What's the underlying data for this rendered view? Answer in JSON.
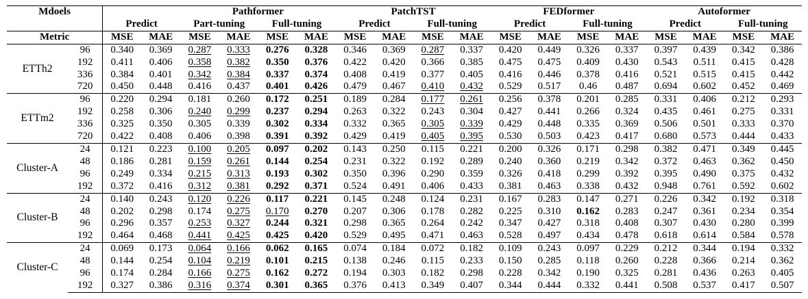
{
  "header": {
    "models_label": "Mdoels",
    "metric_label": "Metric",
    "groups": [
      {
        "name": "",
        "sub": [
          "Predict"
        ]
      },
      {
        "name": "Pathformer",
        "sub": [
          "Part-tuning",
          "Full-tuning"
        ]
      },
      {
        "name": "PatchTST",
        "sub": [
          "Predict",
          "Full-tuning"
        ]
      },
      {
        "name": "FEDformer",
        "sub": [
          "Predict",
          "Full-tuning"
        ]
      },
      {
        "name": "Autoformer",
        "sub": [
          "Predict",
          "Full-tuning"
        ]
      }
    ],
    "metrics": [
      "MSE",
      "MAE",
      "MSE",
      "MAE",
      "MSE",
      "MAE",
      "MSE",
      "MAE",
      "MSE",
      "MAE",
      "MSE",
      "MAE",
      "MSE",
      "MAE",
      "MSE",
      "MAE",
      "MSE",
      "MAE"
    ]
  },
  "blocks": [
    {
      "dataset": "ETTh2",
      "rows": [
        {
          "h": "96",
          "v": [
            "0.340",
            "0.369",
            "0.287",
            "0.333",
            "0.276",
            "0.328",
            "0.346",
            "0.369",
            "0.287",
            "0.337",
            "0.420",
            "0.449",
            "0.326",
            "0.337",
            "0.397",
            "0.439",
            "0.342",
            "0.386"
          ]
        },
        {
          "h": "192",
          "v": [
            "0.411",
            "0.406",
            "0.358",
            "0.382",
            "0.350",
            "0.376",
            "0.422",
            "0.420",
            "0.366",
            "0.385",
            "0.475",
            "0.475",
            "0.409",
            "0.430",
            "0.543",
            "0.511",
            "0.415",
            "0.428"
          ]
        },
        {
          "h": "336",
          "v": [
            "0.384",
            "0.401",
            "0.342",
            "0.384",
            "0.337",
            "0.374",
            "0.408",
            "0.419",
            "0.377",
            "0.405",
            "0.416",
            "0.446",
            "0.378",
            "0.416",
            "0.521",
            "0.515",
            "0.415",
            "0.442"
          ]
        },
        {
          "h": "720",
          "v": [
            "0.450",
            "0.448",
            "0.416",
            "0.437",
            "0.401",
            "0.426",
            "0.479",
            "0.467",
            "0.410",
            "0.432",
            "0.529",
            "0.517",
            "0.46",
            "0.487",
            "0.694",
            "0.602",
            "0.452",
            "0.469"
          ]
        }
      ]
    },
    {
      "dataset": "ETTm2",
      "rows": [
        {
          "h": "96",
          "v": [
            "0.220",
            "0.294",
            "0.181",
            "0.260",
            "0.172",
            "0.251",
            "0.189",
            "0.284",
            "0.177",
            "0.261",
            "0.256",
            "0.378",
            "0.201",
            "0.285",
            "0.331",
            "0.406",
            "0.212",
            "0.293"
          ]
        },
        {
          "h": "192",
          "v": [
            "0.258",
            "0.306",
            "0.240",
            "0.299",
            "0.237",
            "0.294",
            "0.263",
            "0.322",
            "0.243",
            "0.304",
            "0.427",
            "0.441",
            "0.266",
            "0.324",
            "0.435",
            "0.461",
            "0.275",
            "0.331"
          ]
        },
        {
          "h": "336",
          "v": [
            "0.325",
            "0.350",
            "0.305",
            "0.339",
            "0.302",
            "0.334",
            "0.332",
            "0.365",
            "0.305",
            "0.339",
            "0.429",
            "0.448",
            "0.335",
            "0.369",
            "0.506",
            "0.501",
            "0.333",
            "0.370"
          ]
        },
        {
          "h": "720",
          "v": [
            "0.422",
            "0.408",
            "0.406",
            "0.398",
            "0.391",
            "0.392",
            "0.429",
            "0.419",
            "0.405",
            "0.395",
            "0.530",
            "0.503",
            "0.423",
            "0.417",
            "0.680",
            "0.573",
            "0.444",
            "0.433"
          ]
        }
      ]
    },
    {
      "dataset": "Cluster-A",
      "rows": [
        {
          "h": "24",
          "v": [
            "0.121",
            "0.223",
            "0.100",
            "0.205",
            "0.097",
            "0.202",
            "0.143",
            "0.250",
            "0.115",
            "0.221",
            "0.200",
            "0.326",
            "0.171",
            "0.298",
            "0.382",
            "0.471",
            "0.349",
            "0.445"
          ]
        },
        {
          "h": "48",
          "v": [
            "0.186",
            "0.281",
            "0.159",
            "0.261",
            "0.144",
            "0.254",
            "0.231",
            "0.322",
            "0.192",
            "0.289",
            "0.240",
            "0.360",
            "0.219",
            "0.342",
            "0.372",
            "0.463",
            "0.362",
            "0.450"
          ]
        },
        {
          "h": "96",
          "v": [
            "0.249",
            "0.334",
            "0.215",
            "0.313",
            "0.193",
            "0.302",
            "0.350",
            "0.396",
            "0.290",
            "0.359",
            "0.326",
            "0.418",
            "0.299",
            "0.392",
            "0.395",
            "0.490",
            "0.375",
            "0.432"
          ]
        },
        {
          "h": "192",
          "v": [
            "0.372",
            "0.416",
            "0.312",
            "0.381",
            "0.292",
            "0.371",
            "0.524",
            "0.491",
            "0.406",
            "0.433",
            "0.381",
            "0.463",
            "0.338",
            "0.432",
            "0.948",
            "0.761",
            "0.592",
            "0.602"
          ]
        }
      ]
    },
    {
      "dataset": "Cluster-B",
      "rows": [
        {
          "h": "24",
          "v": [
            "0.140",
            "0.243",
            "0.120",
            "0.226",
            "0.117",
            "0.221",
            "0.145",
            "0.248",
            "0.124",
            "0.231",
            "0.167",
            "0.283",
            "0.147",
            "0.271",
            "0.226",
            "0.342",
            "0.192",
            "0.318"
          ]
        },
        {
          "h": "48",
          "v": [
            "0.202",
            "0.298",
            "0.174",
            "0.275",
            "0.170",
            "0.270",
            "0.207",
            "0.306",
            "0.178",
            "0.282",
            "0.225",
            "0.310",
            "0.162",
            "0.283",
            "0.247",
            "0.361",
            "0.234",
            "0.354"
          ]
        },
        {
          "h": "96",
          "v": [
            "0.296",
            "0.357",
            "0.253",
            "0.327",
            "0.244",
            "0.321",
            "0.298",
            "0.365",
            "0.264",
            "0.242",
            "0.347",
            "0.427",
            "0.318",
            "0.408",
            "0.307",
            "0.430",
            "0.280",
            "0.399"
          ]
        },
        {
          "h": "192",
          "v": [
            "0.464",
            "0.468",
            "0.441",
            "0.425",
            "0.425",
            "0.420",
            "0.529",
            "0.495",
            "0.471",
            "0.463",
            "0.528",
            "0.497",
            "0.434",
            "0.478",
            "0.618",
            "0.614",
            "0.584",
            "0.578"
          ]
        }
      ]
    },
    {
      "dataset": "Cluster-C",
      "rows": [
        {
          "h": "24",
          "v": [
            "0.069",
            "0.173",
            "0.064",
            "0.166",
            "0.062",
            "0.165",
            "0.074",
            "0.184",
            "0.072",
            "0.182",
            "0.109",
            "0.243",
            "0.097",
            "0.229",
            "0.212",
            "0.344",
            "0.194",
            "0.332"
          ]
        },
        {
          "h": "48",
          "v": [
            "0.144",
            "0.254",
            "0.104",
            "0.219",
            "0.101",
            "0.215",
            "0.138",
            "0.246",
            "0.115",
            "0.233",
            "0.150",
            "0.285",
            "0.118",
            "0.260",
            "0.228",
            "0.366",
            "0.214",
            "0.362"
          ]
        },
        {
          "h": "96",
          "v": [
            "0.174",
            "0.284",
            "0.166",
            "0.275",
            "0.162",
            "0.272",
            "0.194",
            "0.303",
            "0.182",
            "0.298",
            "0.228",
            "0.342",
            "0.190",
            "0.325",
            "0.281",
            "0.436",
            "0.263",
            "0.405"
          ]
        },
        {
          "h": "192",
          "v": [
            "0.327",
            "0.386",
            "0.316",
            "0.374",
            "0.301",
            "0.365",
            "0.376",
            "0.413",
            "0.349",
            "0.407",
            "0.344",
            "0.444",
            "0.332",
            "0.441",
            "0.508",
            "0.537",
            "0.417",
            "0.507"
          ]
        }
      ]
    }
  ],
  "emphasis": {
    "bold": [
      [
        [
          4,
          5
        ],
        [
          4,
          5
        ],
        [
          4,
          5
        ],
        [
          4,
          5
        ]
      ],
      [
        [
          4,
          5
        ],
        [
          4,
          5
        ],
        [
          4,
          5
        ],
        [
          4,
          5
        ]
      ],
      [
        [
          4,
          5
        ],
        [
          4,
          5
        ],
        [
          4,
          5
        ],
        [
          4,
          5
        ]
      ],
      [
        [
          4,
          5
        ],
        [
          5,
          12
        ],
        [
          4,
          5
        ],
        [
          4,
          5
        ]
      ],
      [
        [
          4,
          5
        ],
        [
          4,
          5
        ],
        [
          4,
          5
        ],
        [
          4,
          5
        ]
      ]
    ],
    "underline": [
      [
        [
          2,
          3,
          8
        ],
        [
          2,
          3
        ],
        [
          2,
          3
        ],
        [
          8,
          9
        ]
      ],
      [
        [
          8,
          9
        ],
        [
          2,
          3
        ],
        [
          8,
          9
        ],
        [
          8,
          9
        ]
      ],
      [
        [
          2,
          3
        ],
        [
          2,
          3
        ],
        [
          2,
          3
        ],
        [
          2,
          3
        ]
      ],
      [
        [
          2,
          3
        ],
        [
          3,
          4
        ],
        [
          2,
          3
        ],
        [
          2,
          3
        ]
      ],
      [
        [
          2,
          3
        ],
        [
          2,
          3
        ],
        [
          2,
          3
        ],
        [
          2,
          3
        ]
      ]
    ]
  }
}
